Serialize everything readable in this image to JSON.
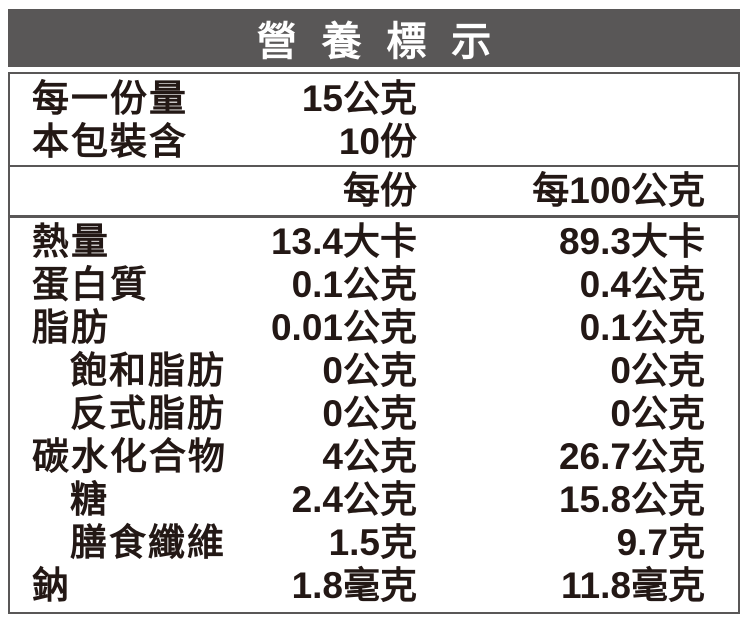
{
  "title": "營養標示",
  "colors": {
    "band": "#595757",
    "border": "#595757",
    "text": "#231815",
    "bg": "#ffffff"
  },
  "serving_info": [
    {
      "label": "每一份量",
      "value": "15公克"
    },
    {
      "label": "本包裝含",
      "value": "10份"
    }
  ],
  "columns": {
    "per_serving": "每份",
    "per_100g": "每100公克"
  },
  "nutrients": [
    {
      "label": "熱量",
      "per_serving": "13.4大卡",
      "per_100g": "89.3大卡"
    },
    {
      "label": "蛋白質",
      "per_serving": "0.1公克",
      "per_100g": "0.4公克"
    },
    {
      "label": "脂肪",
      "per_serving": "0.01公克",
      "per_100g": "0.1公克"
    },
    {
      "label": "飽和脂肪",
      "per_serving": "0公克",
      "per_100g": "0公克"
    },
    {
      "label": "反式脂肪",
      "per_serving": "0公克",
      "per_100g": "0公克"
    },
    {
      "label": "碳水化合物",
      "per_serving": "4公克",
      "per_100g": "26.7公克"
    },
    {
      "label": "糖",
      "per_serving": "2.4公克",
      "per_100g": "15.8公克"
    },
    {
      "label": "膳食纖維",
      "per_serving": "1.5克",
      "per_100g": "9.7克"
    },
    {
      "label": "鈉",
      "per_serving": "1.8毫克",
      "per_100g": "11.8毫克"
    }
  ]
}
